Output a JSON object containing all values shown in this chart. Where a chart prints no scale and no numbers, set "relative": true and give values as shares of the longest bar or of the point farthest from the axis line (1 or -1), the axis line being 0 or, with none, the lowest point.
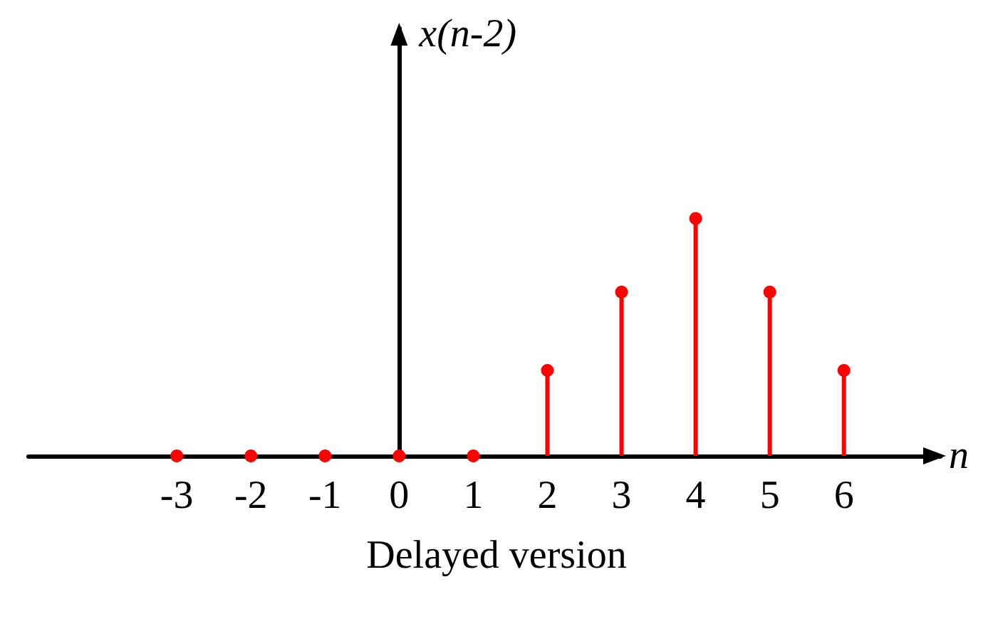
{
  "chart_data": {
    "type": "lollipop",
    "ylabel": "x(n-2)",
    "xlabel": "n",
    "annotations": [
      "Delayed version"
    ],
    "relative": true,
    "x": [
      -3,
      -2,
      -1,
      0,
      1,
      2,
      3,
      4,
      5,
      6
    ],
    "values": [
      0,
      0,
      0,
      0,
      0,
      0.36,
      0.69,
      1,
      0.69,
      0.36
    ],
    "color": "#ff0000",
    "xlim": [
      -5,
      7.3
    ],
    "xticks": [
      -3,
      -2,
      -1,
      0,
      1,
      2,
      3,
      4,
      5,
      6
    ],
    "marker": "circle"
  }
}
